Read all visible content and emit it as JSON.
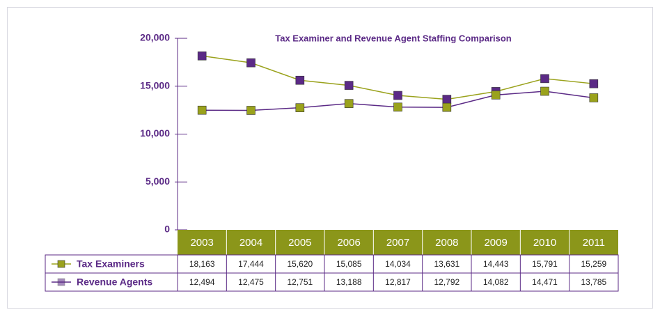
{
  "chart_data": {
    "type": "line",
    "title": "Tax Examiner and Revenue Agent Staffing Comparison",
    "categories": [
      "2003",
      "2004",
      "2005",
      "2006",
      "2007",
      "2008",
      "2009",
      "2010",
      "2011"
    ],
    "series": [
      {
        "name": "Tax Examiners",
        "color": "#9aa21c",
        "marker_color": "#5b2a86",
        "values": [
          18163,
          17444,
          15620,
          15085,
          14034,
          13631,
          14443,
          15791,
          15259
        ],
        "value_labels": [
          "18,163",
          "17,444",
          "15,620",
          "15,085",
          "14,034",
          "13,631",
          "14,443",
          "15,791",
          "15,259"
        ]
      },
      {
        "name": "Revenue Agents",
        "color": "#5b2a86",
        "marker_color": "#9aa21c",
        "values": [
          12494,
          12475,
          12751,
          13188,
          12817,
          12792,
          14082,
          14471,
          13785
        ],
        "value_labels": [
          "12,494",
          "12,475",
          "12,751",
          "13,188",
          "12,817",
          "12,792",
          "14,082",
          "14,471",
          "13,785"
        ]
      }
    ],
    "ylim": [
      0,
      20000
    ],
    "yticks": [
      0,
      {
        "value": 5000,
        "label": "5,000"
      },
      {
        "value": 10000,
        "label": "10,000"
      },
      {
        "value": 15000,
        "label": "15,000"
      },
      {
        "value": 20000,
        "label": "20,000"
      }
    ],
    "header_color": "#8b961a"
  }
}
